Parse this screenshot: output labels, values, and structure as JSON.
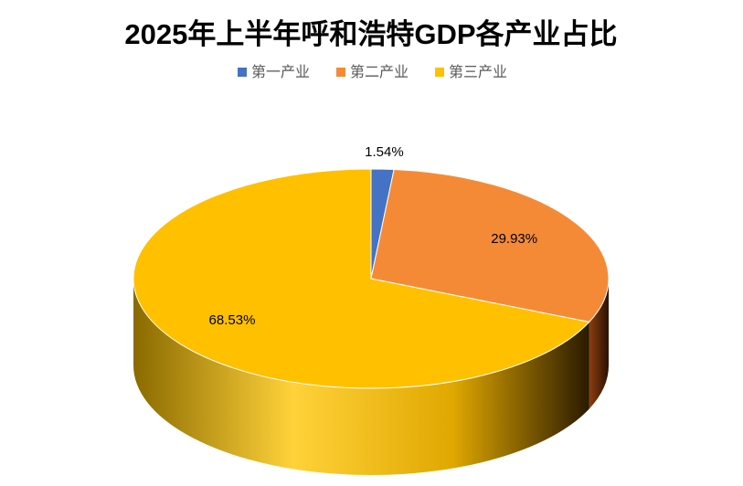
{
  "chart_data": {
    "type": "pie3d",
    "title": "2025年上半年呼和浩特GDP各产业占比",
    "categories": [
      "第一产业",
      "第二产业",
      "第三产业"
    ],
    "values": [
      1.54,
      29.93,
      68.53
    ],
    "value_labels": [
      "1.54%",
      "29.93%",
      "68.53%"
    ],
    "colors": [
      "#4472c4",
      "#f58a36",
      "#ffc000"
    ],
    "legend": "top"
  }
}
